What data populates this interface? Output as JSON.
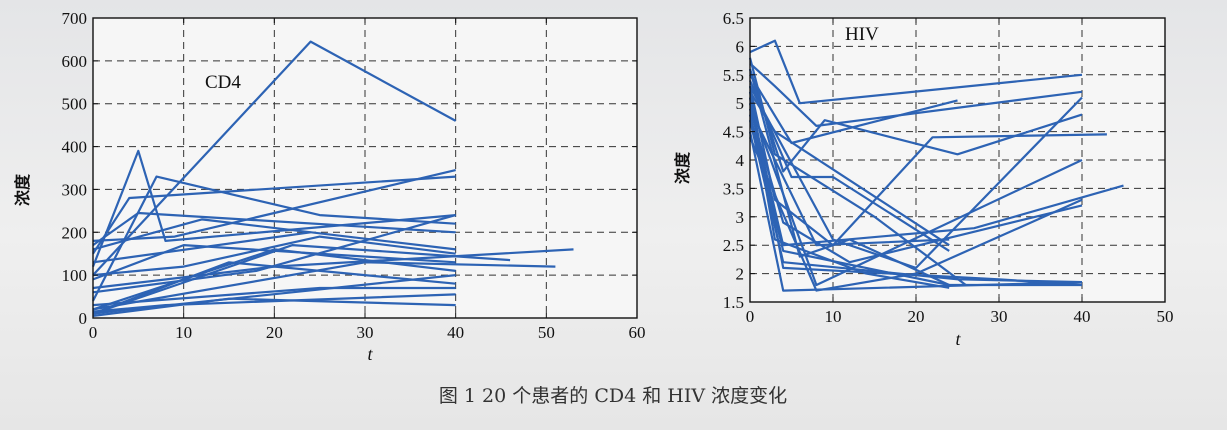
{
  "caption": "图 1   20 个患者的 CD4 和 HIV 浓度变化",
  "chart_data": [
    {
      "type": "line",
      "label": "CD4",
      "xlabel": "t",
      "ylabel": "浓度",
      "xlim": [
        0,
        60
      ],
      "ylim": [
        0,
        700
      ],
      "xticks": [
        "0",
        "10",
        "20",
        "30",
        "40",
        "50",
        "60"
      ],
      "yticks": [
        "0",
        "100",
        "200",
        "300",
        "400",
        "500",
        "600",
        "700"
      ],
      "grid": true,
      "color": "#2d63b4",
      "series": [
        {
          "x": [
            0,
            24,
            40
          ],
          "y": [
            100,
            645,
            460
          ]
        },
        {
          "x": [
            0,
            5,
            8,
            40
          ],
          "y": [
            120,
            390,
            180,
            240
          ]
        },
        {
          "x": [
            0,
            4,
            40
          ],
          "y": [
            150,
            280,
            330
          ]
        },
        {
          "x": [
            0,
            7,
            25,
            40
          ],
          "y": [
            40,
            330,
            240,
            220
          ]
        },
        {
          "x": [
            0,
            9,
            40
          ],
          "y": [
            180,
            190,
            345
          ]
        },
        {
          "x": [
            0,
            5,
            40
          ],
          "y": [
            170,
            245,
            200
          ]
        },
        {
          "x": [
            0,
            10,
            25,
            40
          ],
          "y": [
            100,
            120,
            190,
            150
          ]
        },
        {
          "x": [
            0,
            20,
            53
          ],
          "y": [
            70,
            120,
            160
          ]
        },
        {
          "x": [
            0,
            30,
            51
          ],
          "y": [
            20,
            130,
            120
          ]
        },
        {
          "x": [
            0,
            22,
            46
          ],
          "y": [
            10,
            170,
            135
          ]
        },
        {
          "x": [
            0,
            15,
            40
          ],
          "y": [
            10,
            130,
            80
          ]
        },
        {
          "x": [
            0,
            20,
            40
          ],
          "y": [
            20,
            160,
            110
          ]
        },
        {
          "x": [
            0,
            24
          ],
          "y": [
            130,
            200
          ]
        },
        {
          "x": [
            0,
            10,
            40
          ],
          "y": [
            90,
            170,
            130
          ]
        },
        {
          "x": [
            0,
            4,
            40
          ],
          "y": [
            10,
            20,
            100
          ]
        },
        {
          "x": [
            0,
            15,
            40
          ],
          "y": [
            5,
            45,
            30
          ]
        },
        {
          "x": [
            0,
            25,
            40
          ],
          "y": [
            30,
            70,
            70
          ]
        },
        {
          "x": [
            0,
            8,
            40
          ],
          "y": [
            15,
            30,
            55
          ]
        },
        {
          "x": [
            0,
            12,
            40
          ],
          "y": [
            160,
            230,
            160
          ]
        },
        {
          "x": [
            0,
            18,
            40
          ],
          "y": [
            60,
            110,
            240
          ]
        }
      ]
    },
    {
      "type": "line",
      "label": "HIV",
      "xlabel": "t",
      "ylabel": "浓度",
      "xlim": [
        0,
        50
      ],
      "ylim": [
        1.5,
        6.5
      ],
      "xticks": [
        "0",
        "10",
        "20",
        "30",
        "40",
        "50"
      ],
      "yticks": [
        "1.5",
        "2",
        "2.5",
        "3",
        "3.5",
        "4",
        "4.5",
        "5",
        "5.5",
        "6",
        "6.5"
      ],
      "grid": true,
      "color": "#2d63b4",
      "series": [
        {
          "x": [
            0,
            3,
            6,
            40
          ],
          "y": [
            5.9,
            6.1,
            5.0,
            5.5
          ]
        },
        {
          "x": [
            0,
            3,
            8,
            40
          ],
          "y": [
            5.7,
            5.3,
            4.6,
            5.2
          ]
        },
        {
          "x": [
            0,
            5,
            25
          ],
          "y": [
            5.5,
            4.3,
            5.05
          ]
        },
        {
          "x": [
            0,
            4,
            9,
            25,
            40
          ],
          "y": [
            5.6,
            3.8,
            4.7,
            4.1,
            4.8
          ]
        },
        {
          "x": [
            0,
            3,
            10,
            22,
            43
          ],
          "y": [
            5.3,
            3.3,
            2.5,
            4.4,
            4.45
          ]
        },
        {
          "x": [
            0,
            4,
            27,
            45
          ],
          "y": [
            5.0,
            2.5,
            2.8,
            3.55
          ]
        },
        {
          "x": [
            0,
            3,
            24
          ],
          "y": [
            5.2,
            4.5,
            2.5
          ]
        },
        {
          "x": [
            0,
            5,
            10,
            24
          ],
          "y": [
            5.4,
            3.7,
            3.7,
            2.4
          ]
        },
        {
          "x": [
            0,
            4,
            12,
            40
          ],
          "y": [
            4.9,
            2.9,
            2.2,
            3.2
          ]
        },
        {
          "x": [
            0,
            4,
            40
          ],
          "y": [
            4.5,
            1.7,
            1.85
          ]
        },
        {
          "x": [
            0,
            4,
            24,
            40
          ],
          "y": [
            4.8,
            2.4,
            1.8,
            1.8
          ]
        },
        {
          "x": [
            0,
            3,
            14,
            24
          ],
          "y": [
            5.1,
            2.6,
            2.0,
            1.75
          ]
        },
        {
          "x": [
            0,
            5,
            8,
            40
          ],
          "y": [
            5.0,
            3.0,
            1.8,
            4.0
          ]
        },
        {
          "x": [
            0,
            4,
            25,
            40
          ],
          "y": [
            4.7,
            2.2,
            1.9,
            1.85
          ]
        },
        {
          "x": [
            0,
            10,
            20,
            40
          ],
          "y": [
            5.3,
            2.6,
            2.1,
            5.1
          ]
        },
        {
          "x": [
            0,
            6,
            12,
            24
          ],
          "y": [
            5.6,
            2.3,
            2.6,
            1.8
          ]
        },
        {
          "x": [
            0,
            4,
            30,
            40
          ],
          "y": [
            5.2,
            2.1,
            1.9,
            1.8
          ]
        },
        {
          "x": [
            0,
            8,
            24
          ],
          "y": [
            4.9,
            2.5,
            2.6
          ]
        },
        {
          "x": [
            0,
            3,
            15,
            26
          ],
          "y": [
            5.8,
            4.1,
            3.0,
            1.8
          ]
        },
        {
          "x": [
            0,
            8,
            20,
            40
          ],
          "y": [
            4.4,
            1.7,
            2.0,
            3.3
          ]
        }
      ]
    }
  ]
}
